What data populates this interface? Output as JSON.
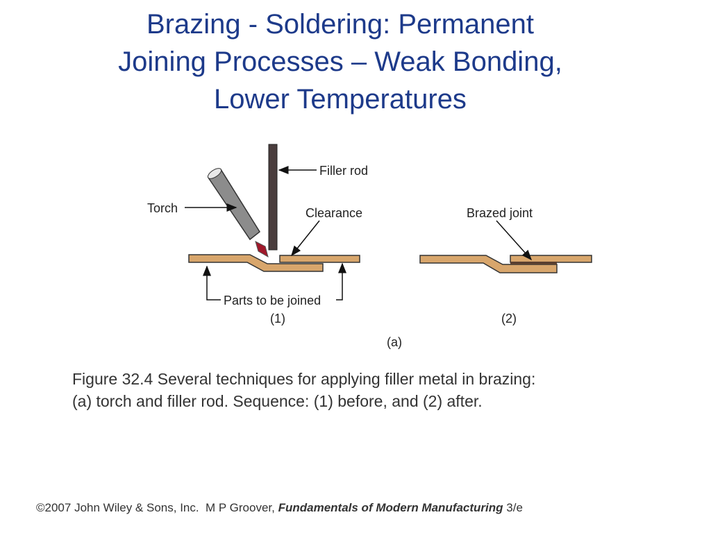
{
  "title": {
    "lines": [
      "Brazing - Soldering: Permanent",
      "Joining Processes – Weak Bonding,",
      "Lower Temperatures"
    ]
  },
  "figure": {
    "labels": {
      "filler_rod": "Filler rod",
      "torch": "Torch",
      "clearance": "Clearance",
      "brazed_joint": "Brazed joint",
      "parts": "Parts to be joined",
      "step1": "(1)",
      "step2": "(2)",
      "panel": "(a)"
    },
    "caption": [
      "Figure 32.4  Several techniques for applying filler metal in brazing:",
      "(a) torch and filler rod. Sequence: (1) before, and (2) after."
    ]
  },
  "footer": {
    "copyright": "©2007 John Wiley & Sons, Inc.  M P Groover, ",
    "book": "Fundamentals of Modern Manufacturing",
    "edition": " 3/e"
  }
}
